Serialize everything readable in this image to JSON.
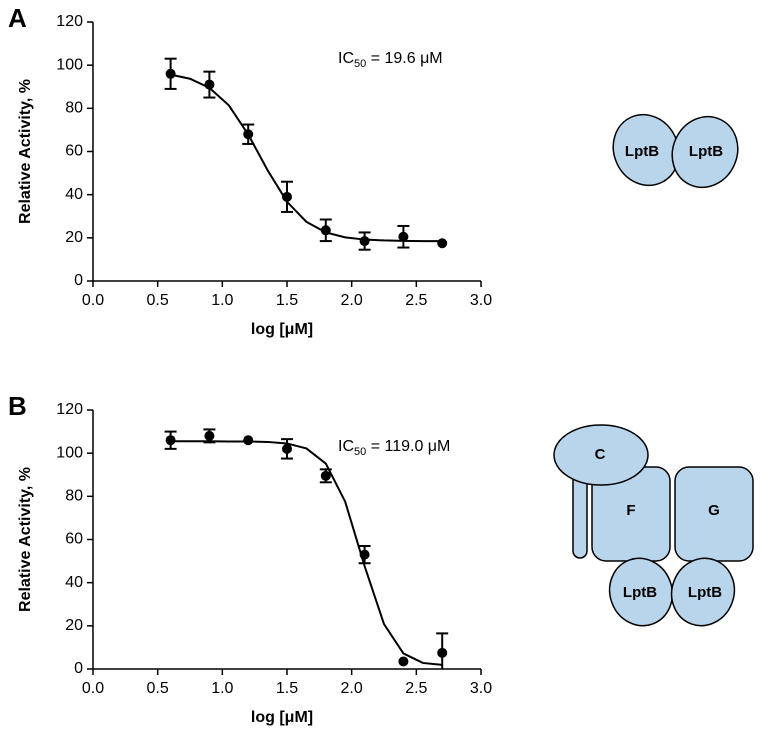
{
  "chart_data": [
    {
      "type": "scatter",
      "panel": "A",
      "xlabel": "log [μM]",
      "ylabel": "Relative Activity, %",
      "annotation": {
        "main": "IC",
        "sub": "50",
        "rest": " = 19.6 μM"
      },
      "x": [
        0.6,
        0.9,
        1.2,
        1.5,
        1.8,
        2.1,
        2.4,
        2.7
      ],
      "values": [
        96,
        91,
        68,
        39,
        23.5,
        18.5,
        20.5,
        17.5
      ],
      "errors": [
        7,
        6,
        4.5,
        7,
        5,
        4,
        5,
        0
      ],
      "curve": {
        "x": [
          0.6,
          0.75,
          0.9,
          1.05,
          1.2,
          1.35,
          1.5,
          1.65,
          1.8,
          1.95,
          2.1,
          2.25,
          2.4,
          2.55,
          2.7
        ],
        "values": [
          95.6,
          93.7,
          89.5,
          81.4,
          67.9,
          51.3,
          36.7,
          27.4,
          22.5,
          20.2,
          19.2,
          18.8,
          18.6,
          18.5,
          18.5
        ]
      },
      "color": "#000000",
      "xlim": [
        0,
        3
      ],
      "ylim": [
        0,
        120
      ],
      "xticks": [
        {
          "value": 0,
          "label": "0.0"
        },
        {
          "value": 0.5,
          "label": "0.5"
        },
        {
          "value": 1,
          "label": "1.0"
        },
        {
          "value": 1.5,
          "label": "1.5"
        },
        {
          "value": 2,
          "label": "2.0"
        },
        {
          "value": 2.5,
          "label": "2.5"
        },
        {
          "value": 3,
          "label": "3.0"
        }
      ],
      "yticks": [
        0,
        20,
        40,
        60,
        80,
        100,
        120
      ]
    },
    {
      "type": "scatter",
      "panel": "B",
      "xlabel": "log [μM]",
      "ylabel": "Relative Activity, %",
      "annotation": {
        "main": "IC",
        "sub": "50",
        "rest": " = 119.0 μM"
      },
      "x": [
        0.6,
        0.9,
        1.2,
        1.5,
        1.8,
        2.1,
        2.4,
        2.7
      ],
      "values": [
        106,
        108,
        106,
        102,
        89.5,
        53,
        3.5,
        7.5
      ],
      "errors": [
        4,
        3,
        0,
        4.5,
        3,
        4,
        0,
        9
      ],
      "curve": {
        "x": [
          0.6,
          0.75,
          0.9,
          1.05,
          1.2,
          1.35,
          1.5,
          1.65,
          1.8,
          1.95,
          2.1,
          2.25,
          2.4,
          2.55,
          2.7
        ],
        "values": [
          105.5,
          105.5,
          105.5,
          105.4,
          105.4,
          105.2,
          104.5,
          102.2,
          95.2,
          77.5,
          47.7,
          20.8,
          7.2,
          2.8,
          1.9
        ]
      },
      "color": "#000000",
      "xlim": [
        0,
        3
      ],
      "ylim": [
        0,
        120
      ],
      "xticks": [
        {
          "value": 0,
          "label": "0.0"
        },
        {
          "value": 0.5,
          "label": "0.5"
        },
        {
          "value": 1,
          "label": "1.0"
        },
        {
          "value": 1.5,
          "label": "1.5"
        },
        {
          "value": 2,
          "label": "2.0"
        },
        {
          "value": 2.5,
          "label": "2.5"
        },
        {
          "value": 3,
          "label": "3.0"
        }
      ],
      "yticks": [
        0,
        20,
        40,
        60,
        80,
        100,
        120
      ]
    }
  ],
  "diagrams": [
    {
      "labels": [
        "LptB",
        "LptB"
      ]
    },
    {
      "labels": [
        "C",
        "F",
        "G",
        "LptB",
        "LptB"
      ]
    }
  ]
}
